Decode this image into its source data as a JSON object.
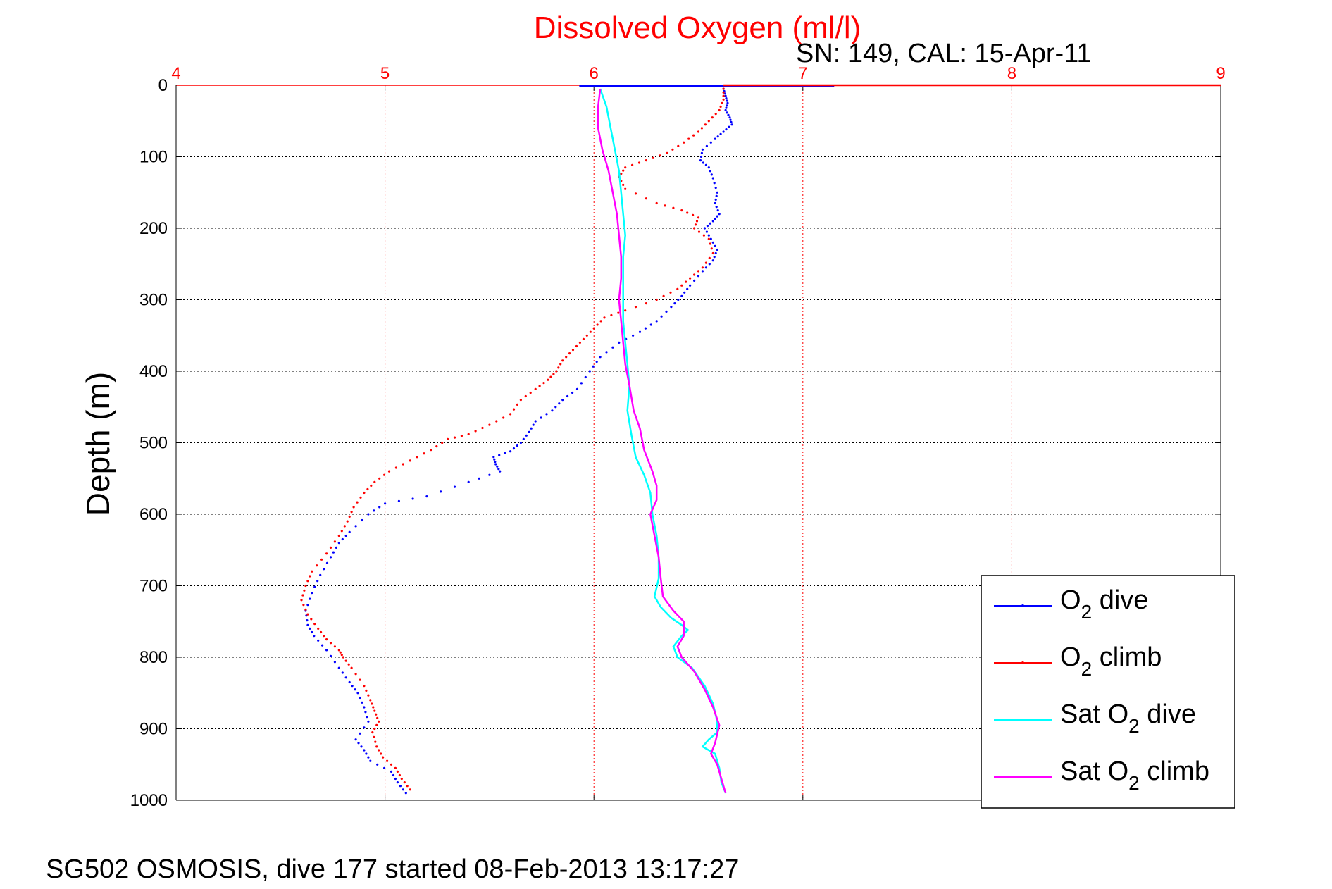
{
  "chart_data": {
    "type": "scatter",
    "title": "Dissolved Oxygen (ml/l)",
    "subtitle": "SN: 149, CAL: 15-Apr-11",
    "footer": "SG502 OSMOSIS, dive 177 started 08-Feb-2013 13:17:27",
    "xlabel": "",
    "ylabel": "Depth (m)",
    "xlim": [
      4,
      9
    ],
    "ylim": [
      0,
      1000
    ],
    "y_reversed": true,
    "x_axis_position": "top",
    "grid": true,
    "legend_position": "bottom-right",
    "x_ticks": [
      "4",
      "5",
      "6",
      "7",
      "8",
      "9"
    ],
    "y_ticks": [
      "0",
      "100",
      "200",
      "300",
      "400",
      "500",
      "600",
      "700",
      "800",
      "900",
      "1000"
    ],
    "colors": {
      "title": "#ff0000",
      "x_tick_labels": "#ff0000",
      "o2_dive": "#0000ff",
      "o2_climb": "#ff0000",
      "sat_o2_dive": "#00ffff",
      "sat_o2_climb": "#ff00ff"
    },
    "legend": [
      {
        "base": "O",
        "sub": "2",
        "rest": " dive",
        "series": "o2_dive"
      },
      {
        "base": "O",
        "sub": "2",
        "rest": " climb",
        "series": "o2_climb"
      },
      {
        "base": "Sat O",
        "sub": "2",
        "rest": " dive",
        "series": "sat_o2_dive"
      },
      {
        "base": "Sat O",
        "sub": "2",
        "rest": " climb",
        "series": "sat_o2_climb"
      }
    ],
    "series": [
      {
        "key": "o2_dive",
        "name": "O2 dive",
        "style": "dots",
        "points": [
          [
            6.62,
            5
          ],
          [
            6.63,
            15
          ],
          [
            6.64,
            25
          ],
          [
            6.63,
            35
          ],
          [
            6.65,
            45
          ],
          [
            6.66,
            55
          ],
          [
            6.62,
            65
          ],
          [
            6.58,
            75
          ],
          [
            6.52,
            90
          ],
          [
            6.51,
            105
          ],
          [
            6.55,
            115
          ],
          [
            6.57,
            130
          ],
          [
            6.59,
            150
          ],
          [
            6.58,
            165
          ],
          [
            6.6,
            180
          ],
          [
            6.57,
            190
          ],
          [
            6.53,
            200
          ],
          [
            6.56,
            215
          ],
          [
            6.59,
            230
          ],
          [
            6.57,
            245
          ],
          [
            6.52,
            260
          ],
          [
            6.46,
            280
          ],
          [
            6.42,
            295
          ],
          [
            6.37,
            310
          ],
          [
            6.3,
            330
          ],
          [
            6.22,
            345
          ],
          [
            6.12,
            360
          ],
          [
            6.03,
            380
          ],
          [
            5.98,
            400
          ],
          [
            5.92,
            425
          ],
          [
            5.85,
            440
          ],
          [
            5.8,
            455
          ],
          [
            5.72,
            470
          ],
          [
            5.69,
            485
          ],
          [
            5.65,
            500
          ],
          [
            5.6,
            512
          ],
          [
            5.52,
            520
          ],
          [
            5.53,
            530
          ],
          [
            5.55,
            540
          ],
          [
            5.4,
            555
          ],
          [
            5.2,
            575
          ],
          [
            5.0,
            585
          ],
          [
            4.92,
            600
          ],
          [
            4.83,
            625
          ],
          [
            4.78,
            640
          ],
          [
            4.74,
            660
          ],
          [
            4.69,
            685
          ],
          [
            4.65,
            710
          ],
          [
            4.62,
            735
          ],
          [
            4.63,
            755
          ],
          [
            4.66,
            770
          ],
          [
            4.72,
            790
          ],
          [
            4.78,
            815
          ],
          [
            4.83,
            835
          ],
          [
            4.87,
            850
          ],
          [
            4.9,
            870
          ],
          [
            4.92,
            890
          ],
          [
            4.86,
            915
          ],
          [
            4.9,
            930
          ],
          [
            4.93,
            945
          ],
          [
            5.03,
            960
          ],
          [
            5.06,
            975
          ],
          [
            5.1,
            990
          ]
        ]
      },
      {
        "key": "o2_climb",
        "name": "O2 climb",
        "style": "dots",
        "points": [
          [
            6.62,
            5
          ],
          [
            6.62,
            20
          ],
          [
            6.6,
            35
          ],
          [
            6.55,
            50
          ],
          [
            6.5,
            65
          ],
          [
            6.43,
            80
          ],
          [
            6.35,
            95
          ],
          [
            6.25,
            105
          ],
          [
            6.15,
            115
          ],
          [
            6.12,
            128
          ],
          [
            6.15,
            145
          ],
          [
            6.3,
            165
          ],
          [
            6.42,
            175
          ],
          [
            6.5,
            185
          ],
          [
            6.48,
            200
          ],
          [
            6.55,
            215
          ],
          [
            6.57,
            235
          ],
          [
            6.52,
            255
          ],
          [
            6.46,
            270
          ],
          [
            6.4,
            285
          ],
          [
            6.3,
            300
          ],
          [
            6.15,
            315
          ],
          [
            6.05,
            325
          ],
          [
            6.0,
            340
          ],
          [
            5.95,
            355
          ],
          [
            5.9,
            370
          ],
          [
            5.85,
            385
          ],
          [
            5.82,
            400
          ],
          [
            5.78,
            412
          ],
          [
            5.72,
            425
          ],
          [
            5.65,
            440
          ],
          [
            5.6,
            460
          ],
          [
            5.5,
            475
          ],
          [
            5.4,
            488
          ],
          [
            5.3,
            495
          ],
          [
            5.22,
            510
          ],
          [
            5.12,
            525
          ],
          [
            5.02,
            540
          ],
          [
            4.95,
            555
          ],
          [
            4.9,
            570
          ],
          [
            4.85,
            590
          ],
          [
            4.82,
            610
          ],
          [
            4.78,
            630
          ],
          [
            4.72,
            655
          ],
          [
            4.65,
            680
          ],
          [
            4.62,
            700
          ],
          [
            4.6,
            720
          ],
          [
            4.63,
            740
          ],
          [
            4.68,
            760
          ],
          [
            4.72,
            775
          ],
          [
            4.78,
            790
          ],
          [
            4.8,
            800
          ],
          [
            4.84,
            815
          ],
          [
            4.9,
            840
          ],
          [
            4.93,
            860
          ],
          [
            4.95,
            875
          ],
          [
            4.97,
            890
          ],
          [
            4.94,
            905
          ],
          [
            4.96,
            925
          ],
          [
            4.99,
            940
          ],
          [
            5.05,
            955
          ],
          [
            5.08,
            970
          ],
          [
            5.12,
            985
          ]
        ]
      },
      {
        "key": "sat_o2_dive",
        "name": "Sat O2 dive",
        "style": "line",
        "points": [
          [
            6.03,
            5
          ],
          [
            6.06,
            30
          ],
          [
            6.08,
            60
          ],
          [
            6.1,
            90
          ],
          [
            6.12,
            120
          ],
          [
            6.13,
            150
          ],
          [
            6.14,
            180
          ],
          [
            6.15,
            210
          ],
          [
            6.14,
            240
          ],
          [
            6.14,
            270
          ],
          [
            6.14,
            300
          ],
          [
            6.14,
            330
          ],
          [
            6.15,
            360
          ],
          [
            6.16,
            390
          ],
          [
            6.17,
            420
          ],
          [
            6.16,
            455
          ],
          [
            6.18,
            490
          ],
          [
            6.2,
            520
          ],
          [
            6.24,
            545
          ],
          [
            6.27,
            570
          ],
          [
            6.28,
            600
          ],
          [
            6.3,
            630
          ],
          [
            6.31,
            660
          ],
          [
            6.31,
            690
          ],
          [
            6.29,
            715
          ],
          [
            6.32,
            730
          ],
          [
            6.37,
            745
          ],
          [
            6.42,
            755
          ],
          [
            6.45,
            762
          ],
          [
            6.42,
            770
          ],
          [
            6.38,
            785
          ],
          [
            6.4,
            800
          ],
          [
            6.47,
            815
          ],
          [
            6.53,
            840
          ],
          [
            6.57,
            865
          ],
          [
            6.59,
            890
          ],
          [
            6.59,
            905
          ],
          [
            6.55,
            915
          ],
          [
            6.52,
            925
          ],
          [
            6.58,
            935
          ],
          [
            6.6,
            955
          ],
          [
            6.61,
            975
          ],
          [
            6.63,
            990
          ]
        ]
      },
      {
        "key": "sat_o2_climb",
        "name": "Sat O2 climb",
        "style": "line",
        "points": [
          [
            6.03,
            5
          ],
          [
            6.02,
            30
          ],
          [
            6.02,
            60
          ],
          [
            6.04,
            90
          ],
          [
            6.07,
            120
          ],
          [
            6.09,
            150
          ],
          [
            6.11,
            180
          ],
          [
            6.12,
            210
          ],
          [
            6.13,
            240
          ],
          [
            6.13,
            270
          ],
          [
            6.12,
            300
          ],
          [
            6.13,
            330
          ],
          [
            6.14,
            360
          ],
          [
            6.15,
            390
          ],
          [
            6.17,
            420
          ],
          [
            6.19,
            455
          ],
          [
            6.22,
            480
          ],
          [
            6.24,
            510
          ],
          [
            6.28,
            540
          ],
          [
            6.3,
            560
          ],
          [
            6.3,
            580
          ],
          [
            6.27,
            600
          ],
          [
            6.29,
            630
          ],
          [
            6.31,
            660
          ],
          [
            6.32,
            690
          ],
          [
            6.33,
            715
          ],
          [
            6.38,
            735
          ],
          [
            6.43,
            750
          ],
          [
            6.43,
            770
          ],
          [
            6.4,
            785
          ],
          [
            6.42,
            800
          ],
          [
            6.48,
            820
          ],
          [
            6.53,
            845
          ],
          [
            6.57,
            870
          ],
          [
            6.6,
            895
          ],
          [
            6.58,
            920
          ],
          [
            6.56,
            935
          ],
          [
            6.59,
            950
          ],
          [
            6.61,
            970
          ],
          [
            6.63,
            990
          ]
        ]
      },
      {
        "key": "o2_dive_surface",
        "name": "",
        "style": "line",
        "color_key": "o2_dive",
        "points": [
          [
            5.93,
            1
          ],
          [
            7.15,
            1
          ]
        ]
      },
      {
        "key": "o2_climb_surface",
        "name": "",
        "style": "line",
        "color_key": "o2_climb",
        "points": [
          [
            6.62,
            0
          ],
          [
            9.0,
            0
          ]
        ]
      }
    ]
  }
}
